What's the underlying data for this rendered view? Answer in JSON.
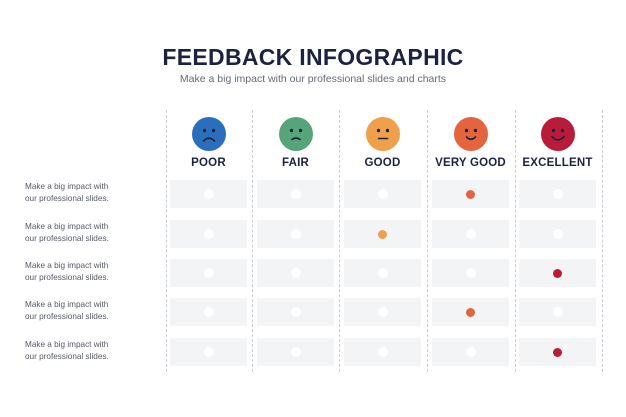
{
  "title": "FEEDBACK INFOGRAPHIC",
  "subtitle": "Make a big impact with our professional slides and charts",
  "columns": [
    {
      "label": "POOR",
      "color": "#2a6ebc",
      "mood": "sad"
    },
    {
      "label": "FAIR",
      "color": "#56a579",
      "mood": "slightly-sad"
    },
    {
      "label": "GOOD",
      "color": "#f0a04c",
      "mood": "neutral"
    },
    {
      "label": "VERY GOOD",
      "color": "#e4643e",
      "mood": "smile"
    },
    {
      "label": "EXCELLENT",
      "color": "#b91c3a",
      "mood": "big-smile"
    }
  ],
  "rows": [
    {
      "label_line1": "Make a big impact with",
      "label_line2": "our professional slides.",
      "selected": 3
    },
    {
      "label_line1": "Make a big impact with",
      "label_line2": "our professional slides.",
      "selected": 2
    },
    {
      "label_line1": "Make a big impact with",
      "label_line2": "our professional slides.",
      "selected": 4
    },
    {
      "label_line1": "Make a big impact with",
      "label_line2": "our professional slides.",
      "selected": 3
    },
    {
      "label_line1": "Make a big impact with",
      "label_line2": "our professional slides.",
      "selected": 4
    }
  ]
}
